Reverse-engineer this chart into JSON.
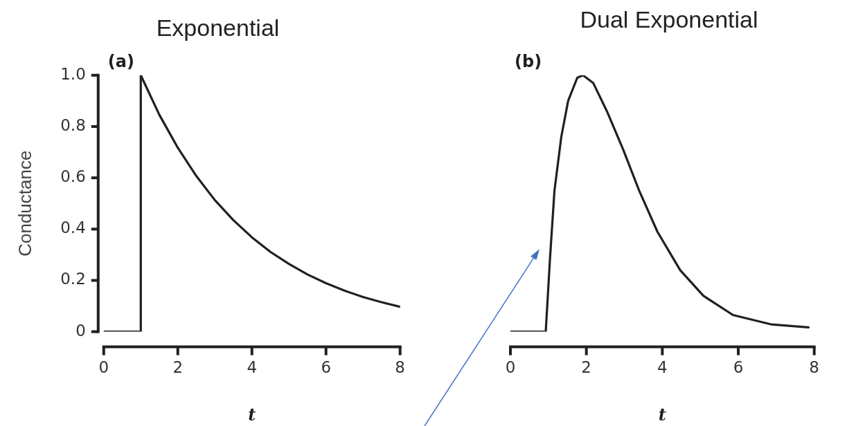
{
  "chart_data": [
    {
      "type": "line",
      "title": "Exponential",
      "xlabel": "t",
      "ylabel": "Conductance",
      "annotations": [
        "(a)"
      ],
      "marker": "none",
      "line_style": "solid",
      "series": [
        {
          "color": "#231f20",
          "x": [
            0,
            1,
            1,
            1.5,
            2,
            2.5,
            3,
            3.5,
            4,
            4.5,
            5,
            5.5,
            6,
            6.5,
            7,
            7.5,
            8
          ],
          "values": [
            0,
            0,
            1,
            0.846,
            0.717,
            0.607,
            0.513,
            0.435,
            0.368,
            0.311,
            0.264,
            0.223,
            0.189,
            0.16,
            0.135,
            0.115,
            0.097
          ]
        }
      ],
      "xlim": [
        0,
        8
      ],
      "xticks": [
        0,
        2,
        4,
        6,
        8
      ],
      "ylim": [
        0,
        1
      ],
      "yticks": [
        0,
        0.2,
        0.4,
        0.6,
        0.8,
        {
          "value": 1,
          "label": "1.0"
        }
      ]
    },
    {
      "type": "line",
      "title": "Dual Exponential",
      "xlabel": "t",
      "annotations": [
        "(b)"
      ],
      "marker": "none",
      "line_style": "solid",
      "tick_labels": "x",
      "series": [
        {
          "color": "#231f20",
          "x": [
            0,
            0.93,
            1.04,
            1.16,
            1.34,
            1.52,
            1.76,
            1.91,
            2.18,
            2.54,
            2.97,
            3.39,
            3.87,
            4.47,
            5.08,
            5.86,
            6.88,
            7.85
          ],
          "values": [
            0,
            0,
            0.28,
            0.55,
            0.76,
            0.9,
            0.99,
            1,
            0.97,
            0.86,
            0.71,
            0.55,
            0.39,
            0.24,
            0.14,
            0.065,
            0.028,
            0.017
          ]
        }
      ],
      "xlim": [
        0,
        8
      ],
      "xticks": [
        0,
        2,
        4,
        6,
        8
      ],
      "ylim": [
        0,
        1
      ]
    }
  ]
}
